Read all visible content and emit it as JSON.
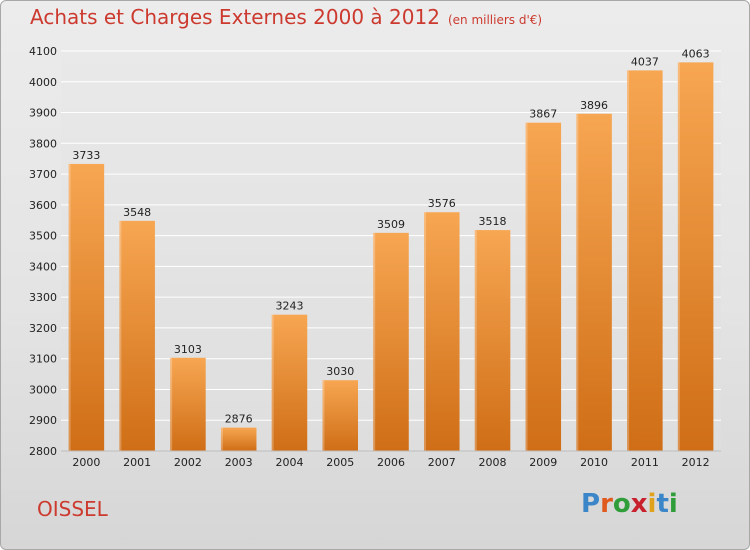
{
  "header": {
    "title": "Achats et Charges Externes 2000 à 2012",
    "subtitle": "(en milliers d'€)"
  },
  "footer": {
    "commune": "OISSEL",
    "logo_letters": [
      "P",
      "r",
      "o",
      "x",
      "i",
      "t",
      "i"
    ],
    "logo_colors": [
      "#3a86c8",
      "#e05a1e",
      "#2f9e3a",
      "#c8202c",
      "#e0a21a",
      "#3a86c8",
      "#2f9e3a"
    ]
  },
  "colors": {
    "bar_top": "#f7a652",
    "bar_bottom": "#cf6e16",
    "grid": "#ffffff",
    "title": "#cc3a2f"
  },
  "chart_data": {
    "type": "bar",
    "title": "Achats et Charges Externes 2000 à 2012",
    "subtitle": "(en milliers d'€)",
    "categories": [
      "2000",
      "2001",
      "2002",
      "2003",
      "2004",
      "2005",
      "2006",
      "2007",
      "2008",
      "2009",
      "2010",
      "2011",
      "2012"
    ],
    "values": [
      3733,
      3548,
      3103,
      2876,
      3243,
      3030,
      3509,
      3576,
      3518,
      3867,
      3896,
      4037,
      4063
    ],
    "ylim": [
      2800,
      4100
    ],
    "yticks": [
      2800,
      2900,
      3000,
      3100,
      3200,
      3300,
      3400,
      3500,
      3600,
      3700,
      3800,
      3900,
      4000,
      4100
    ],
    "grid": true,
    "data_labels": true
  }
}
